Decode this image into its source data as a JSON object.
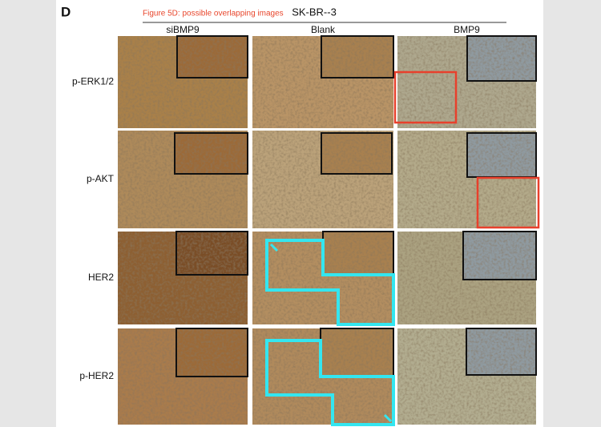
{
  "panel_label": "D",
  "annotation": "Figure 5D: possible overlapping images",
  "header": "SK-BR--3",
  "columns": [
    "siBMP9",
    "Blank",
    "BMP9"
  ],
  "rows": [
    "p-ERK1/2",
    "p-AKT",
    "HER2",
    "p-HER2"
  ]
}
